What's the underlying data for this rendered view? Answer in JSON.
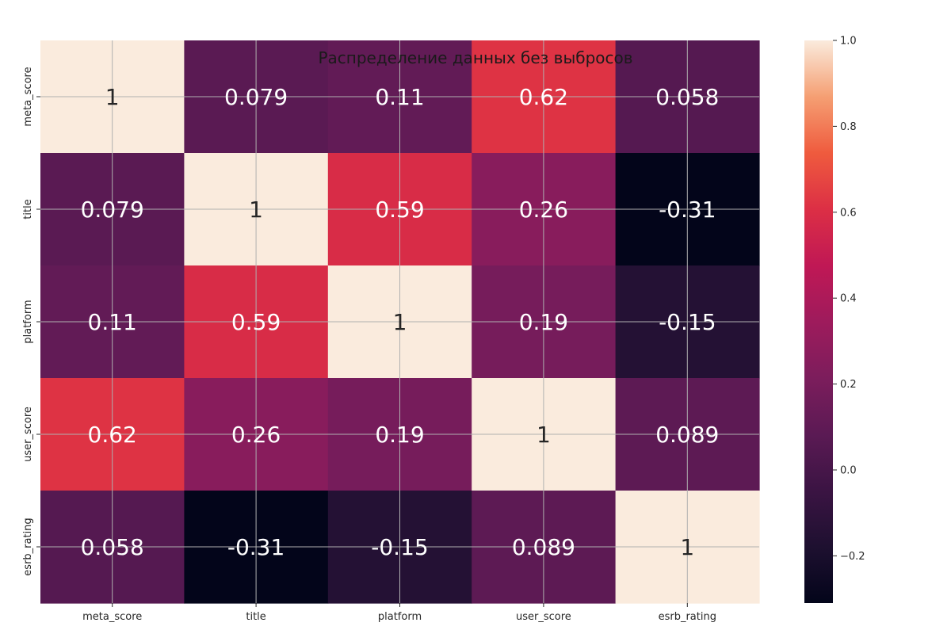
{
  "chart_data": {
    "type": "heatmap",
    "title": "Распределение данных без выбросов",
    "xlabel": "",
    "ylabel": "",
    "x_labels": [
      "meta_score",
      "title",
      "platform",
      "user_score",
      "esrb_rating"
    ],
    "y_labels": [
      "meta_score",
      "title",
      "platform",
      "user_score",
      "esrb_rating"
    ],
    "values": [
      [
        1,
        0.079,
        0.11,
        0.62,
        0.058
      ],
      [
        0.079,
        1,
        0.59,
        0.26,
        -0.31
      ],
      [
        0.11,
        0.59,
        1,
        0.19,
        -0.15
      ],
      [
        0.62,
        0.26,
        0.19,
        1,
        0.089
      ],
      [
        0.058,
        -0.31,
        -0.15,
        0.089,
        1
      ]
    ],
    "annotations": [
      [
        "1",
        "0.079",
        "0.11",
        "0.62",
        "0.058"
      ],
      [
        "0.079",
        "1",
        "0.59",
        "0.26",
        "-0.31"
      ],
      [
        "0.11",
        "0.59",
        "1",
        "0.19",
        "-0.15"
      ],
      [
        "0.62",
        "0.26",
        "0.19",
        "1",
        "0.089"
      ],
      [
        "0.058",
        "-0.31",
        "-0.15",
        "0.089",
        "1"
      ]
    ],
    "colorbar": {
      "vmin": -0.31,
      "vmax": 1,
      "ticks": [
        1.0,
        0.8,
        0.6,
        0.4,
        0.2,
        0.0,
        -0.2
      ],
      "tick_labels": [
        "1.0",
        "0.8",
        "0.6",
        "0.4",
        "0.2",
        "0.0",
        "−0.2"
      ],
      "colormap": "rocket"
    },
    "grid": true
  }
}
